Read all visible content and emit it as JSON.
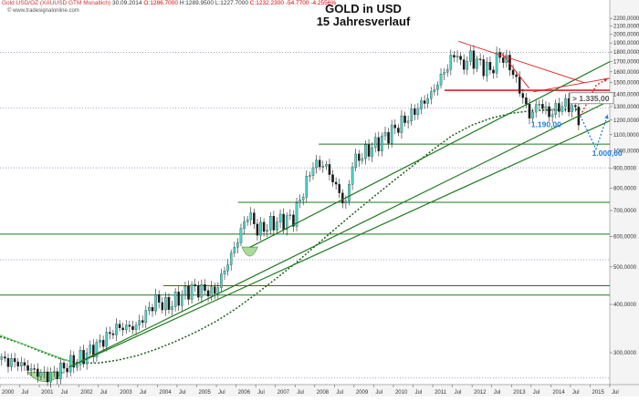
{
  "header": {
    "symbol": "Gold USD/OZ (XAUUSD GTM Monatlich)",
    "date": "30.09.2014",
    "open": "O:1286.7000",
    "high": "H:1289.9500",
    "low": "L:1227.7000",
    "close": "C:1232.2300",
    "change": "-54.7700",
    "change_pct": "-4.2556%",
    "watermark": "© www.tradesignalonline.com"
  },
  "chart_data": {
    "type": "candlestick",
    "title": "GOLD in USD",
    "subtitle": "15 Jahresverlauf",
    "yscale": "log",
    "ylim": [
      248,
      2300
    ],
    "xlim": [
      2000.0,
      2015.5
    ],
    "y_ticks": [
      {
        "value": 2200,
        "label": "2200,0000"
      },
      {
        "value": 2100,
        "label": "2100,0000"
      },
      {
        "value": 2000,
        "label": "2000,0000"
      },
      {
        "value": 1900,
        "label": "1900,0000"
      },
      {
        "value": 1800,
        "label": "1800,0000"
      },
      {
        "value": 1700,
        "label": "1700,0000"
      },
      {
        "value": 1600,
        "label": "1600,0000"
      },
      {
        "value": 1500,
        "label": "1500,0000"
      },
      {
        "value": 1400,
        "label": "1400,0000"
      },
      {
        "value": 1300,
        "label": "1300,0000"
      },
      {
        "value": 1200,
        "label": "1200,0000"
      },
      {
        "value": 1100,
        "label": "1100,0000"
      },
      {
        "value": 1000,
        "label": "1000,0000"
      },
      {
        "value": 900,
        "label": "900,0000"
      },
      {
        "value": 800,
        "label": "800,0000"
      },
      {
        "value": 700,
        "label": "700,0000"
      },
      {
        "value": 600,
        "label": "600,0000"
      },
      {
        "value": 500,
        "label": "500,0000"
      },
      {
        "value": 400,
        "label": "400,0000"
      },
      {
        "value": 300,
        "label": "300,0000"
      }
    ],
    "x_ticks": [
      {
        "t": 2000.0,
        "label": "2000"
      },
      {
        "t": 2000.5,
        "label": "Jul"
      },
      {
        "t": 2001.0,
        "label": "2001"
      },
      {
        "t": 2001.5,
        "label": "Jul"
      },
      {
        "t": 2002.0,
        "label": "2002"
      },
      {
        "t": 2002.5,
        "label": "Jul"
      },
      {
        "t": 2003.0,
        "label": "2003"
      },
      {
        "t": 2003.5,
        "label": "Jul"
      },
      {
        "t": 2004.0,
        "label": "2004"
      },
      {
        "t": 2004.5,
        "label": "Jul"
      },
      {
        "t": 2005.0,
        "label": "2005"
      },
      {
        "t": 2005.5,
        "label": "Jul"
      },
      {
        "t": 2006.0,
        "label": "2006"
      },
      {
        "t": 2006.5,
        "label": "Jul"
      },
      {
        "t": 2007.0,
        "label": "2007"
      },
      {
        "t": 2007.5,
        "label": "Jul"
      },
      {
        "t": 2008.0,
        "label": "2008"
      },
      {
        "t": 2008.5,
        "label": "Jul"
      },
      {
        "t": 2009.0,
        "label": "2009"
      },
      {
        "t": 2009.5,
        "label": "Jul"
      },
      {
        "t": 2010.0,
        "label": "2010"
      },
      {
        "t": 2010.5,
        "label": "Jul"
      },
      {
        "t": 2011.0,
        "label": "2011"
      },
      {
        "t": 2011.5,
        "label": "Jul"
      },
      {
        "t": 2012.0,
        "label": "2012"
      },
      {
        "t": 2012.5,
        "label": "Jul"
      },
      {
        "t": 2013.0,
        "label": "2013"
      },
      {
        "t": 2013.5,
        "label": "Jul"
      },
      {
        "t": 2014.0,
        "label": "2014"
      },
      {
        "t": 2014.5,
        "label": "Jul"
      },
      {
        "t": 2015.0,
        "label": "2015"
      },
      {
        "t": 2015.5,
        "label": "Jul"
      }
    ],
    "close_anchors": [
      [
        2000.0,
        288
      ],
      [
        2000.5,
        282
      ],
      [
        2001.0,
        266
      ],
      [
        2001.3,
        260
      ],
      [
        2001.75,
        278
      ],
      [
        2002.0,
        285
      ],
      [
        2002.5,
        312
      ],
      [
        2003.0,
        348
      ],
      [
        2003.5,
        350
      ],
      [
        2004.0,
        410
      ],
      [
        2004.3,
        395
      ],
      [
        2004.9,
        440
      ],
      [
        2005.5,
        430
      ],
      [
        2006.0,
        560
      ],
      [
        2006.35,
        690
      ],
      [
        2006.6,
        620
      ],
      [
        2007.0,
        650
      ],
      [
        2007.5,
        670
      ],
      [
        2008.0,
        920
      ],
      [
        2008.3,
        920
      ],
      [
        2008.83,
        720
      ],
      [
        2009.0,
        930
      ],
      [
        2009.9,
        1100
      ],
      [
        2010.5,
        1240
      ],
      [
        2011.0,
        1400
      ],
      [
        2011.65,
        1820
      ],
      [
        2011.75,
        1650
      ],
      [
        2012.0,
        1740
      ],
      [
        2012.5,
        1610
      ],
      [
        2012.75,
        1770
      ],
      [
        2013.0,
        1660
      ],
      [
        2013.3,
        1400
      ],
      [
        2013.5,
        1230
      ],
      [
        2013.75,
        1330
      ],
      [
        2014.0,
        1240
      ],
      [
        2014.25,
        1300
      ],
      [
        2014.5,
        1320
      ],
      [
        2014.75,
        1232
      ]
    ],
    "moving_average": [
      [
        2000.0,
        330
      ],
      [
        2000.5,
        318
      ],
      [
        2001.0,
        303
      ],
      [
        2001.5,
        290
      ],
      [
        2002.0,
        282
      ],
      [
        2002.5,
        282
      ],
      [
        2003.0,
        287
      ],
      [
        2003.5,
        295
      ],
      [
        2004.0,
        307
      ],
      [
        2004.5,
        322
      ],
      [
        2005.0,
        340
      ],
      [
        2005.5,
        362
      ],
      [
        2006.0,
        390
      ],
      [
        2006.5,
        425
      ],
      [
        2007.0,
        465
      ],
      [
        2007.5,
        510
      ],
      [
        2008.0,
        565
      ],
      [
        2008.5,
        625
      ],
      [
        2009.0,
        690
      ],
      [
        2009.5,
        760
      ],
      [
        2010.0,
        835
      ],
      [
        2010.5,
        915
      ],
      [
        2011.0,
        1005
      ],
      [
        2011.5,
        1095
      ],
      [
        2012.0,
        1165
      ],
      [
        2012.5,
        1215
      ],
      [
        2013.0,
        1250
      ],
      [
        2013.5,
        1268
      ],
      [
        2014.0,
        1275
      ],
      [
        2014.5,
        1278
      ],
      [
        2014.75,
        1279
      ]
    ],
    "horizontal_levels": [
      {
        "value": 1795,
        "t0": 2000.0,
        "t1": 2015.6,
        "style": "dotted-blue"
      },
      {
        "value": 1290,
        "t0": 2000.0,
        "t1": 2015.6,
        "style": "dotted-blue"
      },
      {
        "value": 903,
        "t0": 2000.0,
        "t1": 2015.6,
        "style": "dotted-blue"
      },
      {
        "value": 522,
        "t0": 2000.0,
        "t1": 2015.6,
        "style": "dotted-blue"
      },
      {
        "value": 258,
        "t0": 2000.0,
        "t1": 2015.6,
        "style": "dotted-blue"
      },
      {
        "value": 1433,
        "t0": 2011.3,
        "t1": 2015.6,
        "style": "red"
      },
      {
        "value": 1040,
        "t0": 2008.1,
        "t1": 2015.6,
        "style": "green"
      },
      {
        "value": 735,
        "t0": 2006.05,
        "t1": 2015.6,
        "style": "green"
      },
      {
        "value": 608,
        "t0": 2000.0,
        "t1": 2015.6,
        "style": "green"
      },
      {
        "value": 447,
        "t0": 2004.15,
        "t1": 2015.6,
        "style": "green"
      },
      {
        "value": 423,
        "t0": 2000.0,
        "t1": 2015.6,
        "style": "green"
      }
    ],
    "trendlines": [
      {
        "from": [
          2001.75,
          275
        ],
        "to": [
          2015.6,
          1348
        ],
        "style": "green"
      },
      {
        "from": [
          2006.35,
          562
        ],
        "to": [
          2015.6,
          1700
        ],
        "style": "green"
      },
      {
        "from": [
          2001.75,
          275
        ],
        "to": [
          2015.6,
          1195
        ],
        "style": "green"
      },
      {
        "from": [
          2000.0,
          333
        ],
        "to": [
          2001.75,
          285
        ],
        "style": "light-green"
      },
      {
        "from": [
          2011.65,
          1920
        ],
        "to": [
          2014.85,
          1500
        ],
        "style": "red"
      },
      {
        "from": [
          2012.75,
          1790
        ],
        "to": [
          2013.45,
          1450
        ],
        "style": "red"
      },
      {
        "from": [
          2013.55,
          1420
        ],
        "to": [
          2015.6,
          1540
        ],
        "style": "red"
      }
    ],
    "projections": [
      {
        "points": [
          [
            2014.75,
            1232
          ],
          [
            2014.95,
            1345
          ],
          [
            2015.15,
            1475
          ],
          [
            2015.45,
            1540
          ]
        ],
        "style": "red-dotted",
        "arrow": true
      },
      {
        "points": [
          [
            2014.75,
            1232
          ],
          [
            2015.15,
            1010
          ],
          [
            2015.45,
            1240
          ]
        ],
        "style": "blue-dotted",
        "arrow": true
      }
    ],
    "annotations": [
      {
        "text": "> 1.335,00",
        "t": 2014.55,
        "value": 1345,
        "boxed": true
      },
      {
        "text": "1.190,00",
        "t": 2013.5,
        "value": 1150
      },
      {
        "text": "1.000,00",
        "t": 2015.05,
        "value": 970
      }
    ],
    "highlight_bowls": [
      {
        "t0": 2000.7,
        "t1": 2001.6,
        "value": 258
      },
      {
        "t0": 2006.15,
        "t1": 2006.55,
        "value": 545
      }
    ],
    "colors": {
      "candle_up": "#44d6c8",
      "candle_down": "#1a1a1a",
      "green": "#1e7a1e",
      "red": "#e02020",
      "blue_annot": "#1f7fd8",
      "grid": "#8080c0"
    }
  }
}
